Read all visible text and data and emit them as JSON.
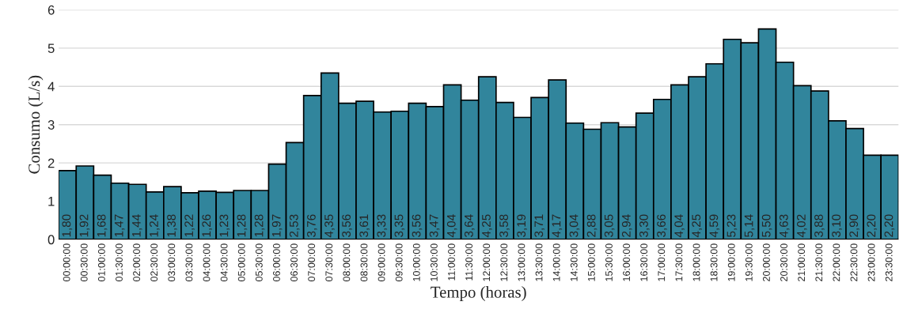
{
  "chart_data": {
    "type": "bar",
    "xlabel": "Tempo (horas)",
    "ylabel": "Consumo (L/s)",
    "categories": [
      "00:00:00",
      "00:30:00",
      "01:00:00",
      "01:30:00",
      "02:00:00",
      "02:30:00",
      "03:00:00",
      "03:30:00",
      "04:00:00",
      "04:30:00",
      "05:00:00",
      "05:30:00",
      "06:00:00",
      "06:30:00",
      "07:00:00",
      "07:30:00",
      "08:00:00",
      "08:30:00",
      "09:00:00",
      "09:30:00",
      "10:00:00",
      "10:30:00",
      "11:00:00",
      "11:30:00",
      "12:00:00",
      "12:30:00",
      "13:00:00",
      "13:30:00",
      "14:00:00",
      "14:30:00",
      "15:00:00",
      "15:30:00",
      "16:00:00",
      "16:30:00",
      "17:00:00",
      "17:30:00",
      "18:00:00",
      "18:30:00",
      "19:00:00",
      "19:30:00",
      "20:00:00",
      "20:30:00",
      "21:00:00",
      "21:30:00",
      "22:00:00",
      "22:30:00",
      "23:00:00",
      "23:30:00"
    ],
    "values": [
      1.8,
      1.92,
      1.68,
      1.47,
      1.44,
      1.24,
      1.38,
      1.22,
      1.26,
      1.23,
      1.28,
      1.28,
      1.97,
      2.53,
      3.76,
      4.35,
      3.56,
      3.61,
      3.33,
      3.35,
      3.56,
      3.47,
      4.04,
      3.64,
      4.25,
      3.58,
      3.19,
      3.71,
      4.17,
      3.04,
      2.88,
      3.05,
      2.94,
      3.3,
      3.66,
      4.04,
      4.25,
      4.59,
      5.23,
      5.14,
      5.5,
      4.63,
      4.02,
      3.88,
      3.1,
      2.9,
      2.2,
      2.2
    ],
    "value_labels": [
      "1,80",
      "1,92",
      "1,68",
      "1,47",
      "1,44",
      "1,24",
      "1,38",
      "1,22",
      "1,26",
      "1,23",
      "1,28",
      "1,28",
      "1,97",
      "2,53",
      "3,76",
      "4,35",
      "3,56",
      "3,61",
      "3,33",
      "3,35",
      "3,56",
      "3,47",
      "4,04",
      "3,64",
      "4,25",
      "3,58",
      "3,19",
      "3,71",
      "4,17",
      "3,04",
      "2,88",
      "3,05",
      "2,94",
      "3,30",
      "3,66",
      "4,04",
      "4,25",
      "4,59",
      "5,23",
      "5,14",
      "5,50",
      "4,63",
      "4,02",
      "3,88",
      "3,10",
      "2,90",
      "2,20",
      "2,20"
    ],
    "color": "#31859c",
    "ylim": [
      0,
      6
    ],
    "yticks": [
      0,
      1,
      2,
      3,
      4,
      5,
      6
    ],
    "grid": "y",
    "legend": false
  }
}
